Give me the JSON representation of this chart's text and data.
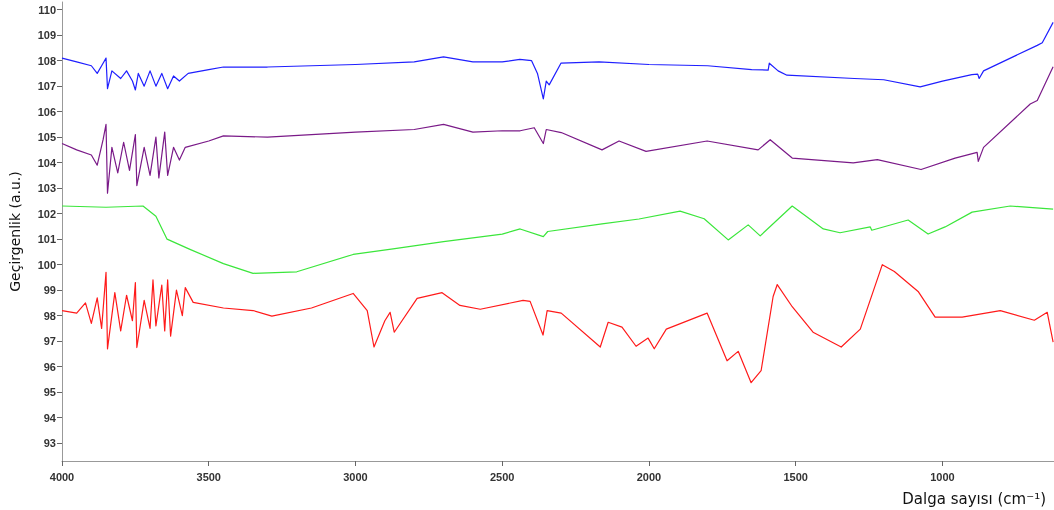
{
  "chart_data": {
    "type": "line",
    "xlabel": "Dalga sayısı (cm⁻¹)",
    "ylabel": "Geçirgenlik (a.u.)",
    "xlim": [
      4000,
      620
    ],
    "xticks": [
      4000,
      3500,
      3000,
      2500,
      2000,
      1500,
      1000
    ],
    "ylim": [
      92.3,
      110.3
    ],
    "yticks": [
      93,
      94,
      95,
      96,
      97,
      98,
      99,
      100,
      101,
      102,
      103,
      104,
      105,
      106,
      107,
      108,
      109,
      110
    ],
    "grid": false,
    "marker": "none",
    "line_style": "solid",
    "series": [
      {
        "color": "#1f1fff",
        "x": [
          4000,
          3950,
          3900,
          3880,
          3860,
          3850,
          3845,
          3830,
          3800,
          3780,
          3760,
          3750,
          3740,
          3720,
          3700,
          3680,
          3660,
          3640,
          3620,
          3600,
          3570,
          3500,
          3450,
          3300,
          3000,
          2800,
          2700,
          2600,
          2500,
          2440,
          2400,
          2380,
          2360,
          2350,
          2340,
          2300,
          2170,
          2000,
          1800,
          1650,
          1594,
          1590,
          1560,
          1530,
          1300,
          1200,
          1076,
          1000,
          900,
          880,
          875,
          860,
          677,
          660,
          623
        ],
        "values": [
          108.1,
          107.95,
          107.8,
          107.5,
          107.9,
          108.1,
          106.9,
          107.6,
          107.3,
          107.6,
          107.2,
          106.85,
          107.5,
          107.0,
          107.6,
          107.0,
          107.5,
          106.9,
          107.4,
          107.2,
          107.5,
          107.65,
          107.75,
          107.75,
          107.85,
          107.95,
          108.15,
          107.95,
          107.95,
          108.05,
          108.0,
          107.5,
          106.5,
          107.2,
          107.05,
          107.9,
          107.95,
          107.85,
          107.8,
          107.65,
          107.63,
          107.9,
          107.6,
          107.43,
          107.3,
          107.25,
          106.97,
          107.2,
          107.45,
          107.47,
          107.3,
          107.6,
          108.6,
          108.7,
          109.5
        ]
      },
      {
        "color": "#7a1a88",
        "x": [
          4000,
          3950,
          3900,
          3880,
          3860,
          3850,
          3845,
          3830,
          3810,
          3790,
          3770,
          3750,
          3745,
          3720,
          3700,
          3680,
          3670,
          3650,
          3640,
          3620,
          3600,
          3580,
          3500,
          3450,
          3300,
          3000,
          2800,
          2700,
          2600,
          2500,
          2439,
          2391,
          2360,
          2350,
          2299,
          2160,
          2102,
          2010,
          1802,
          1628,
          1587,
          1512,
          1304,
          1222,
          1073,
          957,
          882,
          878,
          860,
          701,
          677,
          623
        ],
        "values": [
          104.75,
          104.5,
          104.3,
          103.9,
          104.9,
          105.5,
          102.8,
          104.6,
          103.6,
          104.8,
          103.7,
          105.1,
          103.1,
          104.6,
          103.5,
          105.0,
          103.4,
          105.2,
          103.5,
          104.6,
          104.1,
          104.6,
          104.85,
          105.05,
          105.0,
          105.2,
          105.3,
          105.5,
          105.2,
          105.25,
          105.25,
          105.37,
          104.75,
          105.3,
          105.18,
          104.5,
          104.85,
          104.44,
          104.85,
          104.5,
          104.9,
          104.18,
          103.99,
          104.12,
          103.73,
          104.18,
          104.4,
          104.05,
          104.6,
          106.3,
          106.44,
          107.76
        ]
      },
      {
        "color": "#3be63b",
        "x": [
          4000,
          3850,
          3724,
          3680,
          3642,
          3564,
          3450,
          3349,
          3200,
          3008,
          2872,
          2700,
          2500,
          2439,
          2360,
          2345,
          2160,
          2034,
          1894,
          1812,
          1730,
          1662,
          1621,
          1512,
          1406,
          1349,
          1246,
          1241,
          1117,
          1049,
          991,
          899,
          769,
          623
        ],
        "values": [
          102.3,
          102.25,
          102.3,
          101.9,
          101.0,
          100.6,
          100.04,
          99.66,
          99.72,
          100.4,
          100.62,
          100.9,
          101.2,
          101.4,
          101.1,
          101.3,
          101.6,
          101.79,
          102.1,
          101.8,
          100.97,
          101.56,
          101.13,
          102.3,
          101.4,
          101.25,
          101.48,
          101.35,
          101.75,
          101.2,
          101.48,
          102.06,
          102.3,
          102.18
        ]
      },
      {
        "color": "#ff1a1a",
        "x": [
          4000,
          3950,
          3920,
          3900,
          3880,
          3865,
          3850,
          3845,
          3820,
          3800,
          3780,
          3760,
          3750,
          3745,
          3720,
          3700,
          3690,
          3680,
          3660,
          3650,
          3640,
          3630,
          3610,
          3590,
          3580,
          3553,
          3450,
          3349,
          3285,
          3150,
          3008,
          2960,
          2937,
          2900,
          2882,
          2868,
          2790,
          2705,
          2644,
          2575,
          2429,
          2405,
          2361,
          2347,
          2299,
          2166,
          2139,
          2092,
          2044,
          2003,
          1982,
          1941,
          1802,
          1734,
          1696,
          1652,
          1618,
          1577,
          1563,
          1512,
          1441,
          1345,
          1280,
          1205,
          1164,
          1083,
          1025,
          933,
          803,
          687,
          643,
          623
        ],
        "values": [
          98.2,
          98.1,
          98.5,
          97.7,
          98.7,
          97.5,
          99.7,
          96.7,
          98.9,
          97.4,
          98.8,
          97.8,
          99.3,
          96.75,
          98.6,
          97.5,
          99.4,
          97.6,
          99.2,
          97.4,
          99.4,
          97.2,
          99.0,
          98.0,
          99.1,
          98.52,
          98.3,
          98.2,
          97.98,
          98.3,
          98.87,
          98.2,
          96.77,
          97.8,
          98.13,
          97.35,
          98.68,
          98.9,
          98.4,
          98.25,
          98.6,
          98.56,
          97.24,
          98.2,
          98.1,
          96.77,
          97.74,
          97.55,
          96.8,
          97.12,
          96.7,
          97.47,
          98.1,
          96.23,
          96.6,
          95.37,
          95.84,
          98.75,
          99.22,
          98.35,
          97.35,
          96.77,
          97.47,
          100.0,
          99.73,
          98.95,
          97.94,
          97.94,
          98.2,
          97.82,
          98.13,
          96.96
        ]
      }
    ]
  }
}
